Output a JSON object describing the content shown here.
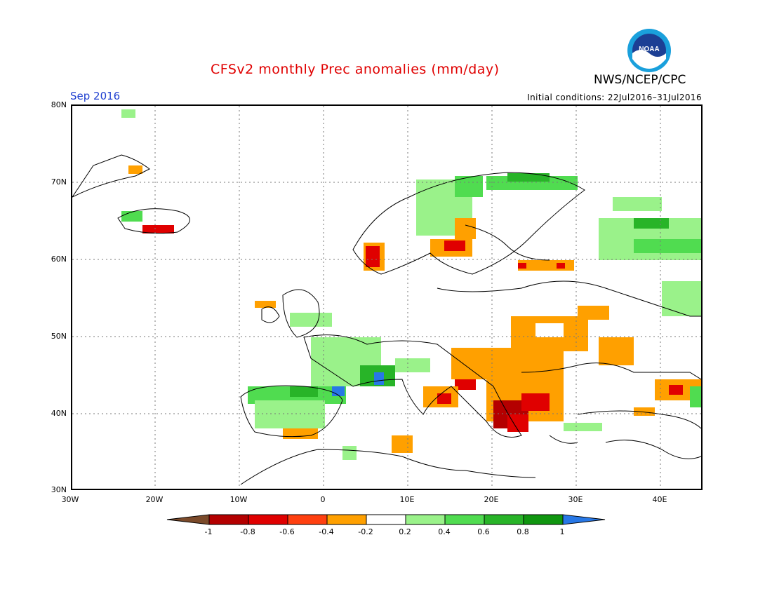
{
  "header": {
    "title": "CFSv2 monthly Prec anomalies (mm/day)",
    "agency": "NWS/NCEP/CPC",
    "logo_text": "NOAA",
    "month": "Sep 2016",
    "initial_conditions": "Initial conditions: 22Jul2016–31Jul2016"
  },
  "axes": {
    "lat_labels": [
      "80N",
      "70N",
      "60N",
      "50N",
      "40N",
      "30N"
    ],
    "lon_labels": [
      "30W",
      "20W",
      "10W",
      "0",
      "10E",
      "20E",
      "30E",
      "40E"
    ]
  },
  "colorbar": {
    "ticks": [
      "-1",
      "-0.8",
      "-0.6",
      "-0.4",
      "-0.2",
      "0.2",
      "0.4",
      "0.6",
      "0.8",
      "1"
    ],
    "colors": [
      "#7b4a2a",
      "#b40000",
      "#e00000",
      "#ff4010",
      "#ffa000",
      "#ffffff",
      "#9af28a",
      "#50dc50",
      "#28b428",
      "#109610",
      "#2878e6"
    ]
  }
}
